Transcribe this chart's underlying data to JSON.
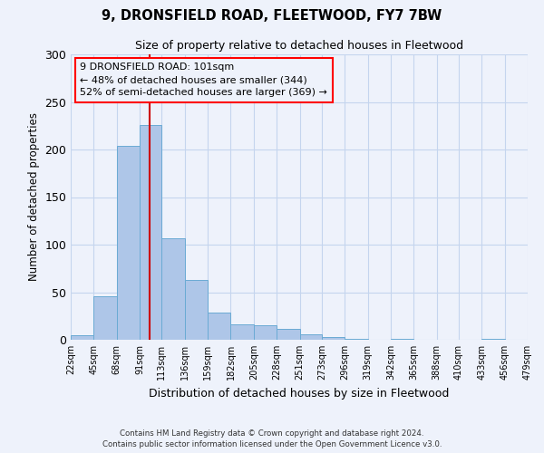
{
  "title": "9, DRONSFIELD ROAD, FLEETWOOD, FY7 7BW",
  "subtitle": "Size of property relative to detached houses in Fleetwood",
  "xlabel": "Distribution of detached houses by size in Fleetwood",
  "ylabel": "Number of detached properties",
  "bar_edges": [
    22,
    45,
    68,
    91,
    113,
    136,
    159,
    182,
    205,
    228,
    251,
    273,
    296,
    319,
    342,
    365,
    388,
    410,
    433,
    456,
    479
  ],
  "bar_heights": [
    5,
    46,
    204,
    226,
    107,
    63,
    29,
    16,
    15,
    11,
    6,
    3,
    1,
    0,
    1,
    0,
    0,
    0,
    1,
    0
  ],
  "bar_color": "#aec6e8",
  "bar_edge_color": "#6aaad4",
  "vline_x": 101,
  "vline_color": "#cc0000",
  "ylim": [
    0,
    300
  ],
  "yticks": [
    0,
    50,
    100,
    150,
    200,
    250,
    300
  ],
  "bg_color": "#eef2fb",
  "grid_color": "#c5d5ee",
  "annotation_line1": "9 DRONSFIELD ROAD: 101sqm",
  "annotation_line2": "← 48% of detached houses are smaller (344)",
  "annotation_line3": "52% of semi-detached houses are larger (369) →",
  "footer_line1": "Contains HM Land Registry data © Crown copyright and database right 2024.",
  "footer_line2": "Contains public sector information licensed under the Open Government Licence v3.0.",
  "tick_labels": [
    "22sqm",
    "45sqm",
    "68sqm",
    "91sqm",
    "113sqm",
    "136sqm",
    "159sqm",
    "182sqm",
    "205sqm",
    "228sqm",
    "251sqm",
    "273sqm",
    "296sqm",
    "319sqm",
    "342sqm",
    "365sqm",
    "388sqm",
    "410sqm",
    "433sqm",
    "456sqm",
    "479sqm"
  ]
}
